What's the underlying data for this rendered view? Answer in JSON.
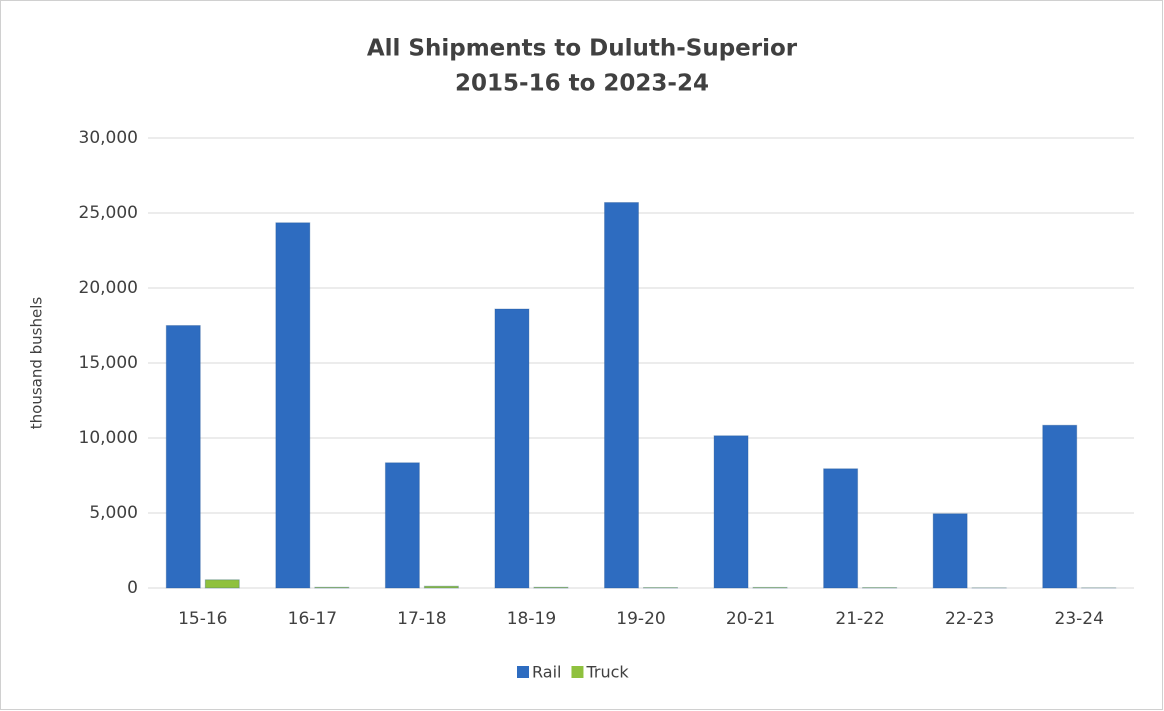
{
  "chart_data": {
    "type": "bar",
    "title": "All Shipments to Duluth-Superior",
    "subtitle": "2015-16 to 2023-24",
    "ylabel": "thousand bushels",
    "categories": [
      "15-16",
      "16-17",
      "17-18",
      "18-19",
      "19-20",
      "20-21",
      "21-22",
      "22-23",
      "23-24"
    ],
    "series": [
      {
        "name": "Rail",
        "color": "#2e6cc0",
        "values": [
          17500,
          24350,
          8350,
          18600,
          25700,
          10150,
          7950,
          4950,
          10850
        ]
      },
      {
        "name": "Truck",
        "color": "#8fc13e",
        "values": [
          550,
          50,
          120,
          50,
          30,
          40,
          30,
          10,
          10
        ]
      }
    ],
    "ylim": [
      0,
      30000
    ],
    "yticks": [
      0,
      {
        "value": 5000,
        "label": "5,000"
      },
      {
        "value": 10000,
        "label": "10,000"
      },
      {
        "value": 15000,
        "label": "15,000"
      },
      {
        "value": 20000,
        "label": "20,000"
      },
      {
        "value": 25000,
        "label": "25,000"
      },
      {
        "value": 30000,
        "label": "30,000"
      }
    ],
    "grid": true,
    "legend": "bottom"
  }
}
